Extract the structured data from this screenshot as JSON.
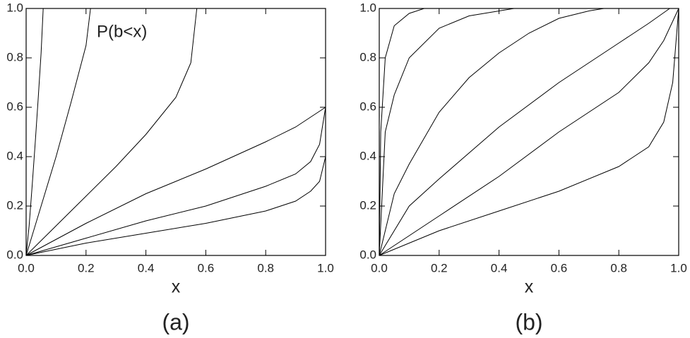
{
  "chart_data": [
    {
      "type": "line",
      "xlabel": "x",
      "caption": "(a)",
      "annotation": "P(b<x)",
      "xlim": [
        0,
        1
      ],
      "ylim": [
        0,
        1
      ],
      "xticks": [
        {
          "value": 0,
          "label": "0.0"
        },
        {
          "value": 0.2,
          "label": "0.2"
        },
        {
          "value": 0.4,
          "label": "0.4"
        },
        {
          "value": 0.6,
          "label": "0.6"
        },
        {
          "value": 0.8,
          "label": "0.8"
        },
        {
          "value": 1,
          "label": "1.0"
        }
      ],
      "yticks": [
        {
          "value": 0,
          "label": "0.0"
        },
        {
          "value": 0.2,
          "label": "0.2"
        },
        {
          "value": 0.4,
          "label": "0.4"
        },
        {
          "value": 0.6,
          "label": "0.6"
        },
        {
          "value": 0.8,
          "label": "0.8"
        },
        {
          "value": 1,
          "label": "1.0"
        }
      ],
      "series": [
        {
          "color": "#000000",
          "x": [
            0,
            0.01,
            0.02,
            0.03,
            0.04,
            0.05,
            0.057
          ],
          "values": [
            0,
            0.12,
            0.28,
            0.45,
            0.63,
            0.82,
            1
          ]
        },
        {
          "color": "#000000",
          "x": [
            0,
            0.05,
            0.1,
            0.15,
            0.2,
            0.215
          ],
          "values": [
            0,
            0.2,
            0.4,
            0.62,
            0.85,
            1
          ]
        },
        {
          "color": "#000000",
          "x": [
            0,
            0.1,
            0.2,
            0.3,
            0.4,
            0.5,
            0.55,
            0.57
          ],
          "values": [
            0,
            0.12,
            0.24,
            0.36,
            0.49,
            0.64,
            0.78,
            1
          ]
        },
        {
          "color": "#000000",
          "x": [
            0,
            0.2,
            0.4,
            0.6,
            0.8,
            0.9,
            1
          ],
          "values": [
            0,
            0.13,
            0.25,
            0.35,
            0.46,
            0.52,
            0.6
          ]
        },
        {
          "color": "#000000",
          "x": [
            0,
            0.2,
            0.4,
            0.6,
            0.8,
            0.9,
            0.95,
            0.98,
            1
          ],
          "values": [
            0,
            0.07,
            0.14,
            0.2,
            0.28,
            0.33,
            0.38,
            0.45,
            0.6
          ]
        },
        {
          "color": "#000000",
          "x": [
            0,
            0.2,
            0.4,
            0.6,
            0.8,
            0.9,
            0.95,
            0.98,
            1
          ],
          "values": [
            0,
            0.05,
            0.09,
            0.13,
            0.18,
            0.22,
            0.26,
            0.3,
            0.4
          ]
        }
      ]
    },
    {
      "type": "line",
      "xlabel": "x",
      "caption": "(b)",
      "xlim": [
        0,
        1
      ],
      "ylim": [
        0,
        1
      ],
      "xticks": [
        {
          "value": 0,
          "label": "0.0"
        },
        {
          "value": 0.2,
          "label": "0.2"
        },
        {
          "value": 0.4,
          "label": "0.4"
        },
        {
          "value": 0.6,
          "label": "0.6"
        },
        {
          "value": 0.8,
          "label": "0.8"
        },
        {
          "value": 1,
          "label": "1.0"
        }
      ],
      "yticks": [
        {
          "value": 0,
          "label": "0.0"
        },
        {
          "value": 0.2,
          "label": "0.2"
        },
        {
          "value": 0.4,
          "label": "0.4"
        },
        {
          "value": 0.6,
          "label": "0.6"
        },
        {
          "value": 0.8,
          "label": "0.8"
        },
        {
          "value": 1,
          "label": "1.0"
        }
      ],
      "series": [
        {
          "color": "#000000",
          "x": [
            0,
            0.005,
            0.02,
            0.05,
            0.1,
            0.15,
            0.2
          ],
          "values": [
            0,
            0.5,
            0.8,
            0.93,
            0.98,
            1,
            1
          ]
        },
        {
          "color": "#000000",
          "x": [
            0,
            0.02,
            0.05,
            0.1,
            0.2,
            0.3,
            0.4,
            0.45
          ],
          "values": [
            0,
            0.5,
            0.65,
            0.8,
            0.92,
            0.97,
            0.99,
            1
          ]
        },
        {
          "color": "#000000",
          "x": [
            0,
            0.05,
            0.1,
            0.2,
            0.3,
            0.4,
            0.5,
            0.6,
            0.7,
            0.75
          ],
          "values": [
            0,
            0.25,
            0.37,
            0.58,
            0.72,
            0.82,
            0.9,
            0.96,
            0.99,
            1
          ]
        },
        {
          "color": "#000000",
          "x": [
            0,
            0.1,
            0.2,
            0.4,
            0.6,
            0.8,
            0.9,
            0.97
          ],
          "values": [
            0,
            0.2,
            0.31,
            0.52,
            0.7,
            0.86,
            0.94,
            1
          ]
        },
        {
          "color": "#000000",
          "x": [
            0,
            0.2,
            0.4,
            0.6,
            0.8,
            0.9,
            0.95,
            1
          ],
          "values": [
            0,
            0.16,
            0.32,
            0.5,
            0.66,
            0.78,
            0.87,
            1
          ]
        },
        {
          "color": "#000000",
          "x": [
            0,
            0.2,
            0.4,
            0.6,
            0.8,
            0.9,
            0.95,
            0.98,
            1
          ],
          "values": [
            0,
            0.1,
            0.18,
            0.26,
            0.36,
            0.44,
            0.54,
            0.7,
            1
          ]
        }
      ]
    }
  ]
}
